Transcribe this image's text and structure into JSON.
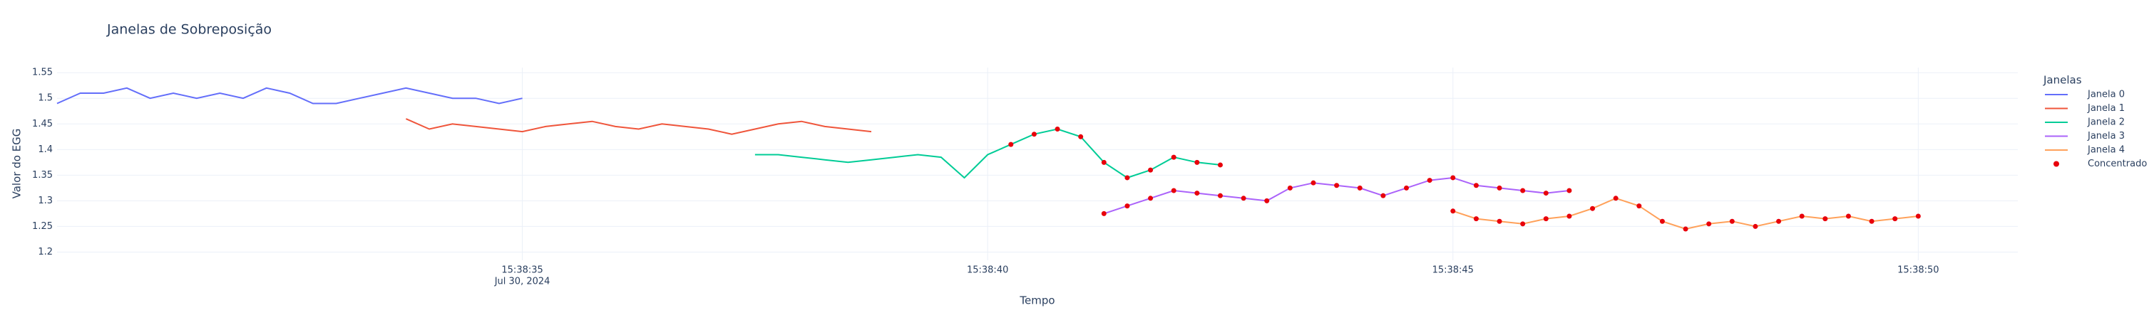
{
  "chart_data": {
    "type": "line",
    "title": "Janelas de Sobreposição",
    "x_label": "Tempo",
    "y_label": "Valor do EGG",
    "x_date_label": "Jul 30, 2024",
    "legend_title": "Janelas",
    "legend_position": "right",
    "grid": true,
    "xlim": [
      "2024-07-30 15:38:30.00",
      "2024-07-30 15:38:51.07"
    ],
    "xticks": [
      {
        "value": "2024-07-30 15:38:35.00",
        "label": "15:38:35"
      },
      {
        "value": "2024-07-30 15:38:40.00",
        "label": "15:38:40"
      },
      {
        "value": "2024-07-30 15:38:45.00",
        "label": "15:38:45"
      },
      {
        "value": "2024-07-30 15:38:50.00",
        "label": "15:38:50"
      }
    ],
    "ylim": [
      1.184,
      1.56
    ],
    "yticks": [
      1.2,
      1.25,
      1.3,
      1.35,
      1.4,
      1.45,
      1.5,
      1.55
    ],
    "series": [
      {
        "name": "Janela 0",
        "color": "#636efa",
        "mode": "lines",
        "x": [
          "2024-07-30 15:38:30.00",
          "2024-07-30 15:38:30.25",
          "2024-07-30 15:38:30.50",
          "2024-07-30 15:38:30.75",
          "2024-07-30 15:38:31.00",
          "2024-07-30 15:38:31.25",
          "2024-07-30 15:38:31.50",
          "2024-07-30 15:38:31.75",
          "2024-07-30 15:38:32.00",
          "2024-07-30 15:38:32.25",
          "2024-07-30 15:38:32.50",
          "2024-07-30 15:38:32.75",
          "2024-07-30 15:38:33.00",
          "2024-07-30 15:38:33.25",
          "2024-07-30 15:38:33.50",
          "2024-07-30 15:38:33.75",
          "2024-07-30 15:38:34.00",
          "2024-07-30 15:38:34.25",
          "2024-07-30 15:38:34.50",
          "2024-07-30 15:38:34.75",
          "2024-07-30 15:38:35.00"
        ],
        "values": [
          1.49,
          1.51,
          1.51,
          1.52,
          1.5,
          1.51,
          1.5,
          1.51,
          1.5,
          1.52,
          1.51,
          1.49,
          1.49,
          1.5,
          1.51,
          1.52,
          1.51,
          1.5,
          1.5,
          1.49,
          1.5
        ]
      },
      {
        "name": "Janela 1",
        "color": "#ef553b",
        "mode": "lines",
        "x": [
          "2024-07-30 15:38:33.75",
          "2024-07-30 15:38:34.00",
          "2024-07-30 15:38:34.25",
          "2024-07-30 15:38:34.50",
          "2024-07-30 15:38:34.75",
          "2024-07-30 15:38:35.00",
          "2024-07-30 15:38:35.25",
          "2024-07-30 15:38:35.50",
          "2024-07-30 15:38:35.75",
          "2024-07-30 15:38:36.00",
          "2024-07-30 15:38:36.25",
          "2024-07-30 15:38:36.50",
          "2024-07-30 15:38:36.75",
          "2024-07-30 15:38:37.00",
          "2024-07-30 15:38:37.25",
          "2024-07-30 15:38:37.50",
          "2024-07-30 15:38:37.75",
          "2024-07-30 15:38:38.00",
          "2024-07-30 15:38:38.25",
          "2024-07-30 15:38:38.50",
          "2024-07-30 15:38:38.75"
        ],
        "values": [
          1.46,
          1.44,
          1.45,
          1.445,
          1.44,
          1.435,
          1.445,
          1.45,
          1.455,
          1.445,
          1.44,
          1.45,
          1.445,
          1.44,
          1.43,
          1.44,
          1.45,
          1.455,
          1.445,
          1.44,
          1.435
        ]
      },
      {
        "name": "Janela 2",
        "color": "#00cc96",
        "mode": "lines",
        "x": [
          "2024-07-30 15:38:37.50",
          "2024-07-30 15:38:37.75",
          "2024-07-30 15:38:38.00",
          "2024-07-30 15:38:38.25",
          "2024-07-30 15:38:38.50",
          "2024-07-30 15:38:38.75",
          "2024-07-30 15:38:39.00",
          "2024-07-30 15:38:39.25",
          "2024-07-30 15:38:39.50",
          "2024-07-30 15:38:39.75",
          "2024-07-30 15:38:40.00",
          "2024-07-30 15:38:40.25",
          "2024-07-30 15:38:40.50",
          "2024-07-30 15:38:40.75",
          "2024-07-30 15:38:41.00",
          "2024-07-30 15:38:41.25",
          "2024-07-30 15:38:41.50",
          "2024-07-30 15:38:41.75",
          "2024-07-30 15:38:42.00",
          "2024-07-30 15:38:42.25",
          "2024-07-30 15:38:42.50"
        ],
        "values": [
          1.39,
          1.39,
          1.385,
          1.38,
          1.375,
          1.38,
          1.385,
          1.39,
          1.385,
          1.345,
          1.39,
          1.41,
          1.43,
          1.44,
          1.425,
          1.375,
          1.345,
          1.36,
          1.385,
          1.375,
          1.37
        ]
      },
      {
        "name": "Janela 3",
        "color": "#ab63fa",
        "mode": "lines",
        "x": [
          "2024-07-30 15:38:41.25",
          "2024-07-30 15:38:41.50",
          "2024-07-30 15:38:41.75",
          "2024-07-30 15:38:42.00",
          "2024-07-30 15:38:42.25",
          "2024-07-30 15:38:42.50",
          "2024-07-30 15:38:42.75",
          "2024-07-30 15:38:43.00",
          "2024-07-30 15:38:43.25",
          "2024-07-30 15:38:43.50",
          "2024-07-30 15:38:43.75",
          "2024-07-30 15:38:44.00",
          "2024-07-30 15:38:44.25",
          "2024-07-30 15:38:44.50",
          "2024-07-30 15:38:44.75",
          "2024-07-30 15:38:45.00",
          "2024-07-30 15:38:45.25",
          "2024-07-30 15:38:45.50",
          "2024-07-30 15:38:45.75",
          "2024-07-30 15:38:46.00",
          "2024-07-30 15:38:46.25"
        ],
        "values": [
          1.275,
          1.29,
          1.305,
          1.32,
          1.315,
          1.31,
          1.305,
          1.3,
          1.325,
          1.335,
          1.33,
          1.325,
          1.31,
          1.325,
          1.34,
          1.345,
          1.33,
          1.325,
          1.32,
          1.315,
          1.32
        ]
      },
      {
        "name": "Janela 4",
        "color": "#ffa15a",
        "mode": "lines",
        "x": [
          "2024-07-30 15:38:45.00",
          "2024-07-30 15:38:45.25",
          "2024-07-30 15:38:45.50",
          "2024-07-30 15:38:45.75",
          "2024-07-30 15:38:46.00",
          "2024-07-30 15:38:46.25",
          "2024-07-30 15:38:46.50",
          "2024-07-30 15:38:46.75",
          "2024-07-30 15:38:47.00",
          "2024-07-30 15:38:47.25",
          "2024-07-30 15:38:47.50",
          "2024-07-30 15:38:47.75",
          "2024-07-30 15:38:48.00",
          "2024-07-30 15:38:48.25",
          "2024-07-30 15:38:48.50",
          "2024-07-30 15:38:48.75",
          "2024-07-30 15:38:49.00",
          "2024-07-30 15:38:49.25",
          "2024-07-30 15:38:49.50",
          "2024-07-30 15:38:49.75",
          "2024-07-30 15:38:50.00"
        ],
        "values": [
          1.28,
          1.265,
          1.26,
          1.255,
          1.265,
          1.27,
          1.285,
          1.305,
          1.29,
          1.26,
          1.245,
          1.255,
          1.26,
          1.25,
          1.26,
          1.27,
          1.265,
          1.27,
          1.26,
          1.265,
          1.27
        ]
      },
      {
        "name": "Concentrado",
        "color": "#e8000b",
        "mode": "markers",
        "x": [
          "2024-07-30 15:38:40.25",
          "2024-07-30 15:38:40.50",
          "2024-07-30 15:38:40.75",
          "2024-07-30 15:38:41.00",
          "2024-07-30 15:38:41.25",
          "2024-07-30 15:38:41.50",
          "2024-07-30 15:38:41.75",
          "2024-07-30 15:38:42.00",
          "2024-07-30 15:38:42.25",
          "2024-07-30 15:38:42.50",
          "2024-07-30 15:38:41.25",
          "2024-07-30 15:38:41.50",
          "2024-07-30 15:38:41.75",
          "2024-07-30 15:38:42.00",
          "2024-07-30 15:38:42.25",
          "2024-07-30 15:38:42.50",
          "2024-07-30 15:38:42.75",
          "2024-07-30 15:38:43.00",
          "2024-07-30 15:38:43.25",
          "2024-07-30 15:38:43.50",
          "2024-07-30 15:38:43.75",
          "2024-07-30 15:38:44.00",
          "2024-07-30 15:38:44.25",
          "2024-07-30 15:38:44.50",
          "2024-07-30 15:38:44.75",
          "2024-07-30 15:38:45.00",
          "2024-07-30 15:38:45.25",
          "2024-07-30 15:38:45.50",
          "2024-07-30 15:38:45.75",
          "2024-07-30 15:38:46.00",
          "2024-07-30 15:38:46.25",
          "2024-07-30 15:38:45.00",
          "2024-07-30 15:38:45.25",
          "2024-07-30 15:38:45.50",
          "2024-07-30 15:38:45.75",
          "2024-07-30 15:38:46.00",
          "2024-07-30 15:38:46.25",
          "2024-07-30 15:38:46.50",
          "2024-07-30 15:38:46.75",
          "2024-07-30 15:38:47.00",
          "2024-07-30 15:38:47.25",
          "2024-07-30 15:38:47.50",
          "2024-07-30 15:38:47.75",
          "2024-07-30 15:38:48.00",
          "2024-07-30 15:38:48.25",
          "2024-07-30 15:38:48.50",
          "2024-07-30 15:38:48.75",
          "2024-07-30 15:38:49.00",
          "2024-07-30 15:38:49.25",
          "2024-07-30 15:38:49.50",
          "2024-07-30 15:38:49.75",
          "2024-07-30 15:38:50.00"
        ],
        "values": [
          1.41,
          1.43,
          1.44,
          1.425,
          1.375,
          1.345,
          1.36,
          1.385,
          1.375,
          1.37,
          1.275,
          1.29,
          1.305,
          1.32,
          1.315,
          1.31,
          1.305,
          1.3,
          1.325,
          1.335,
          1.33,
          1.325,
          1.31,
          1.325,
          1.34,
          1.345,
          1.33,
          1.325,
          1.32,
          1.315,
          1.32,
          1.28,
          1.265,
          1.26,
          1.255,
          1.265,
          1.27,
          1.285,
          1.305,
          1.29,
          1.26,
          1.245,
          1.255,
          1.26,
          1.25,
          1.26,
          1.27,
          1.265,
          1.27,
          1.26,
          1.265,
          1.27
        ]
      }
    ]
  }
}
